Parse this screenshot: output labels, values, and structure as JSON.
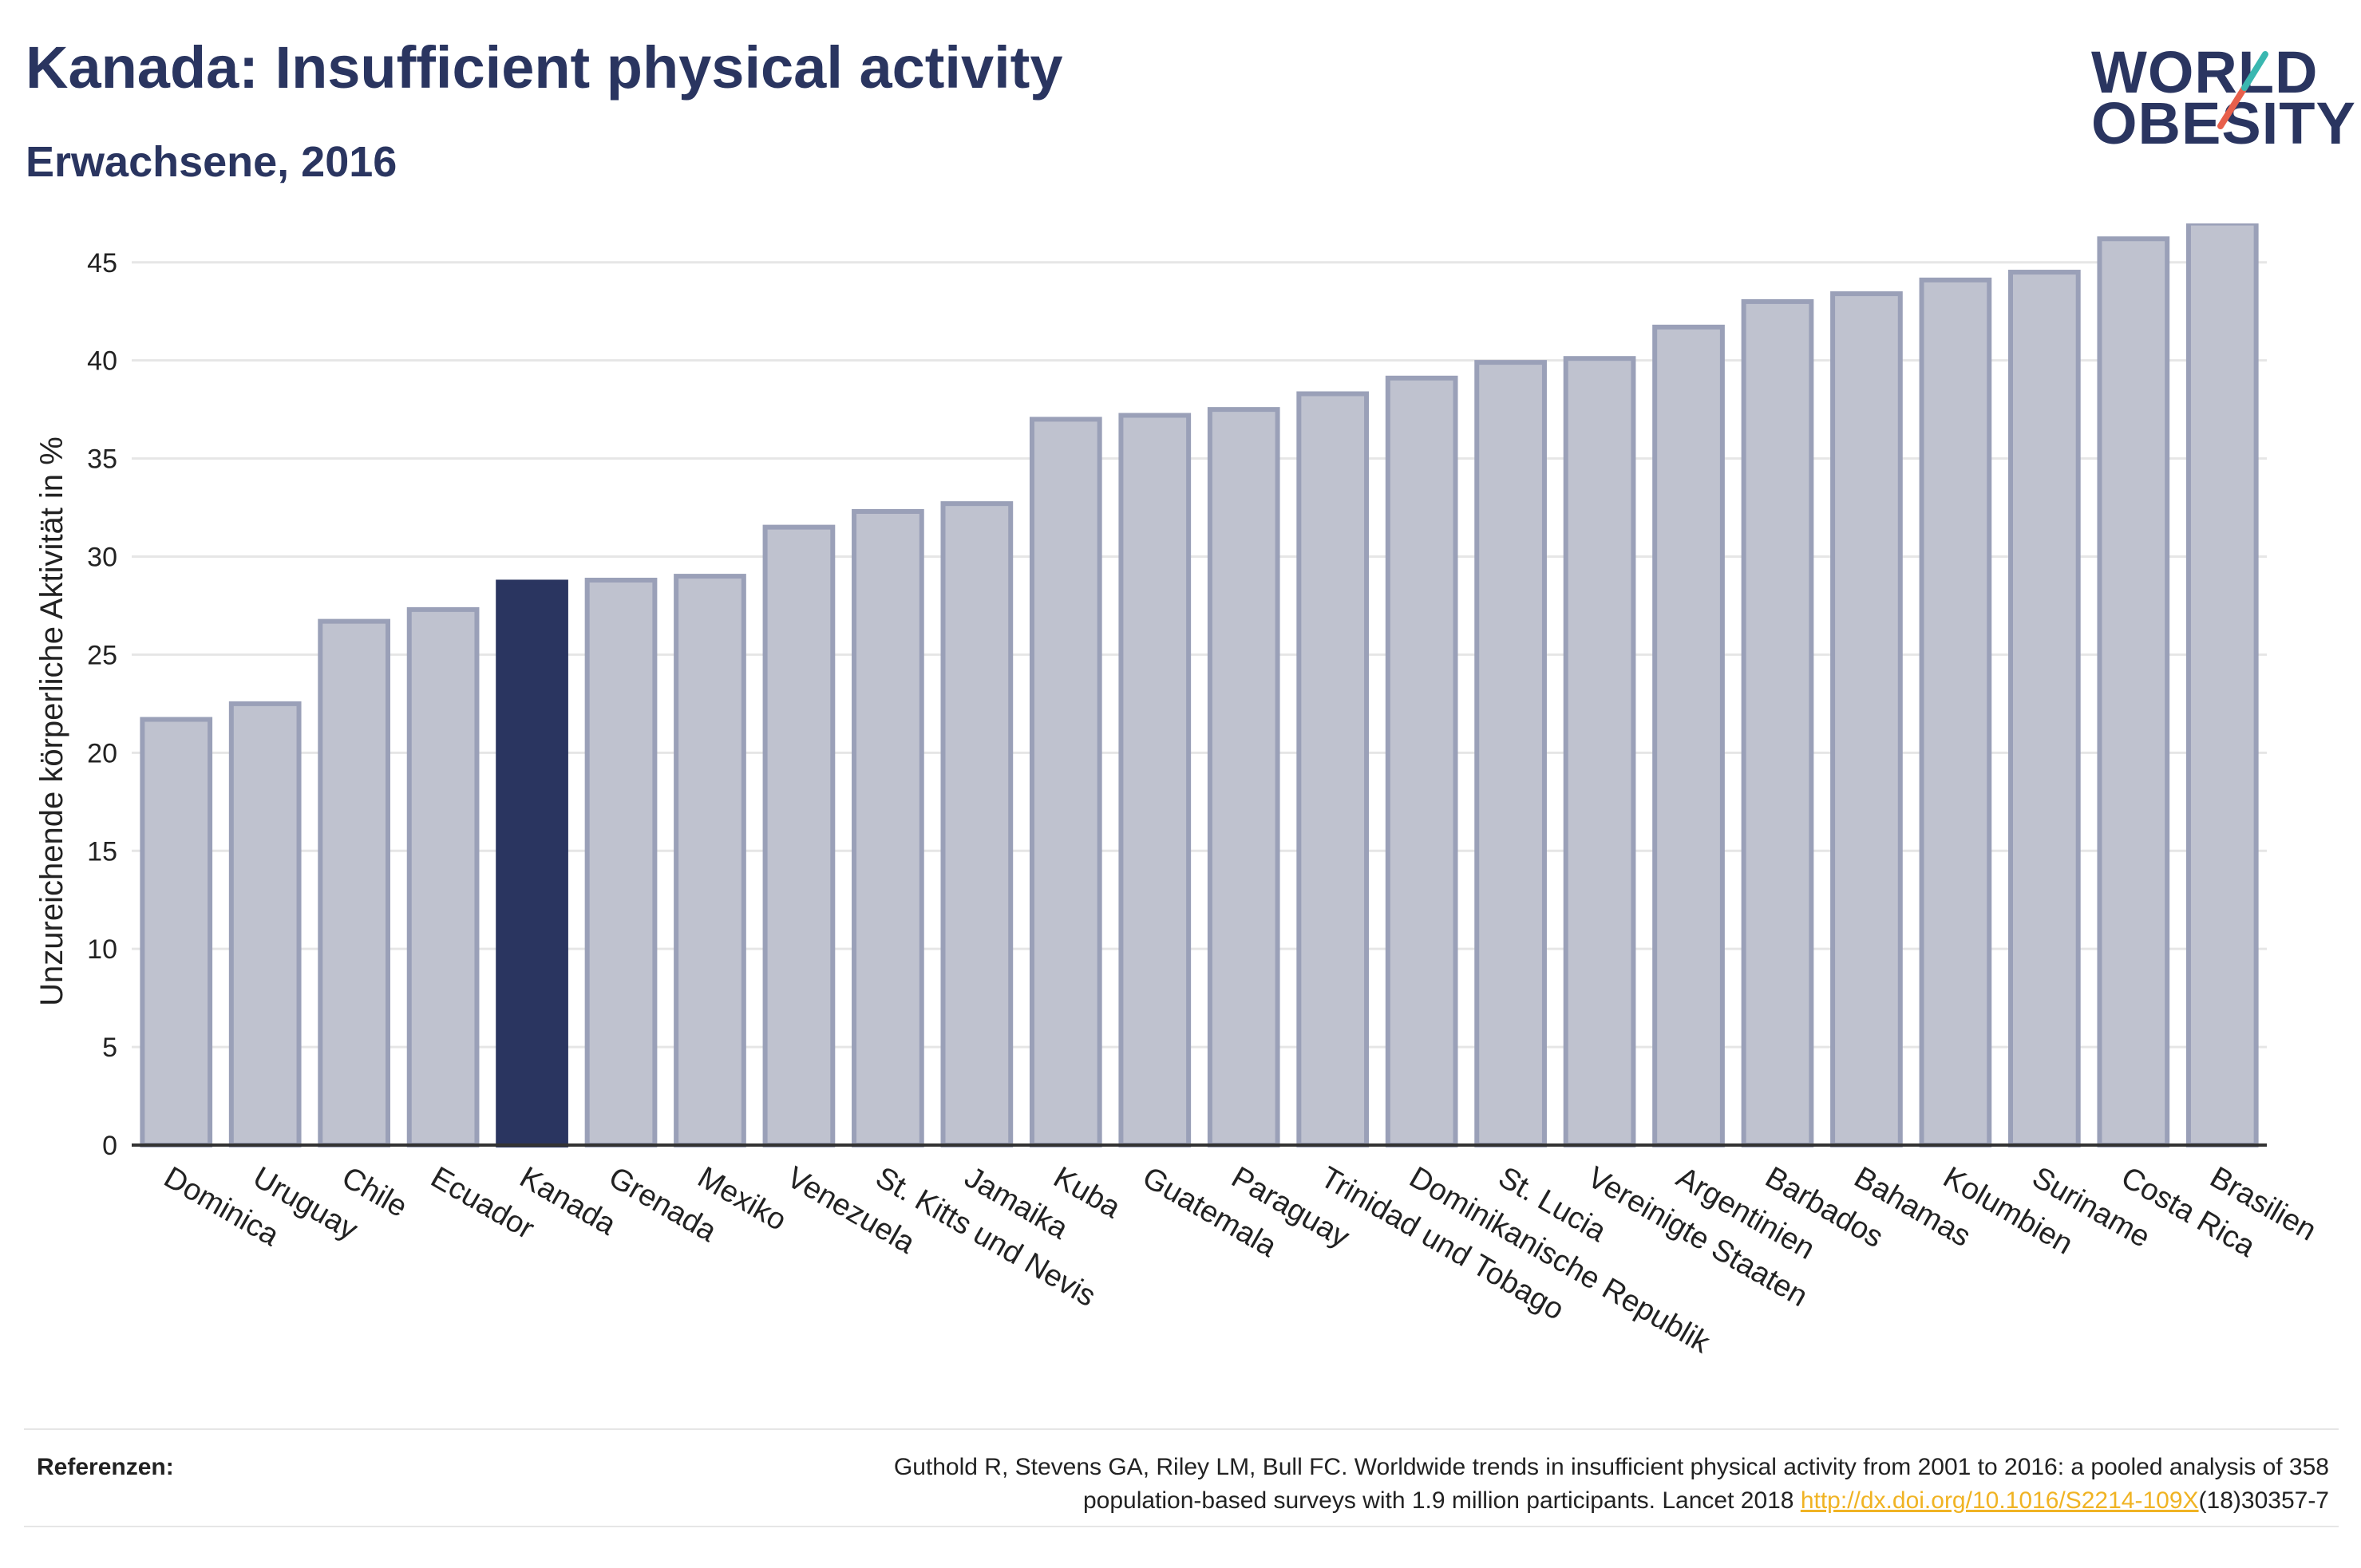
{
  "header": {
    "title": "Kanada: Insufficient physical activity",
    "subtitle": "Erwachsene, 2016"
  },
  "logo": {
    "line1": "WORLD",
    "line2": "OBESITY",
    "colors": {
      "text": "#2a3560",
      "accent_teal": "#3ab7b0",
      "accent_red": "#e8604c"
    }
  },
  "chart_data": {
    "type": "bar",
    "title": "Kanada: Insufficient physical activity",
    "subtitle": "Erwachsene, 2016",
    "xlabel": "",
    "ylabel": "Unzureichende körperliche Aktivität in %",
    "ylim": [
      0,
      48
    ],
    "yticks": [
      0,
      5,
      10,
      15,
      20,
      25,
      30,
      35,
      40,
      45
    ],
    "grid": true,
    "highlight": "Kanada",
    "colors": {
      "bar": "#bfc2cf",
      "bar_edge": "#9aa0b8",
      "highlight": "#2a3560",
      "grid": "#e6e6e6",
      "axis": "#333333"
    },
    "categories": [
      "Dominica",
      "Uruguay",
      "Chile",
      "Ecuador",
      "Kanada",
      "Grenada",
      "Mexiko",
      "Venezuela",
      "St. Kitts und Nevis",
      "Jamaika",
      "Kuba",
      "Guatemala",
      "Paraguay",
      "Trinidad und Tobago",
      "Dominikanische Republik",
      "St. Lucia",
      "Vereinigte Staaten",
      "Argentinien",
      "Barbados",
      "Bahamas",
      "Kolumbien",
      "Suriname",
      "Costa Rica",
      "Brasilien"
    ],
    "values": [
      21.7,
      22.5,
      26.7,
      27.3,
      28.7,
      28.8,
      29.0,
      31.5,
      32.3,
      32.7,
      37.0,
      37.2,
      37.5,
      38.3,
      39.1,
      39.9,
      40.1,
      41.7,
      43.0,
      43.4,
      44.1,
      44.5,
      46.2,
      47.0
    ]
  },
  "references": {
    "label": "Referenzen:",
    "text_line1": "Guthold R, Stevens GA, Riley LM, Bull FC. Worldwide trends in insufficient physical activity from 2001 to 2016: a pooled analysis of 358",
    "text_line2_prefix": "population-based surveys with 1.9 million participants. Lancet 2018 ",
    "link": "http://dx.doi.org/10.1016/S2214-109X",
    "text_line2_suffix": "(18)30357-7"
  }
}
